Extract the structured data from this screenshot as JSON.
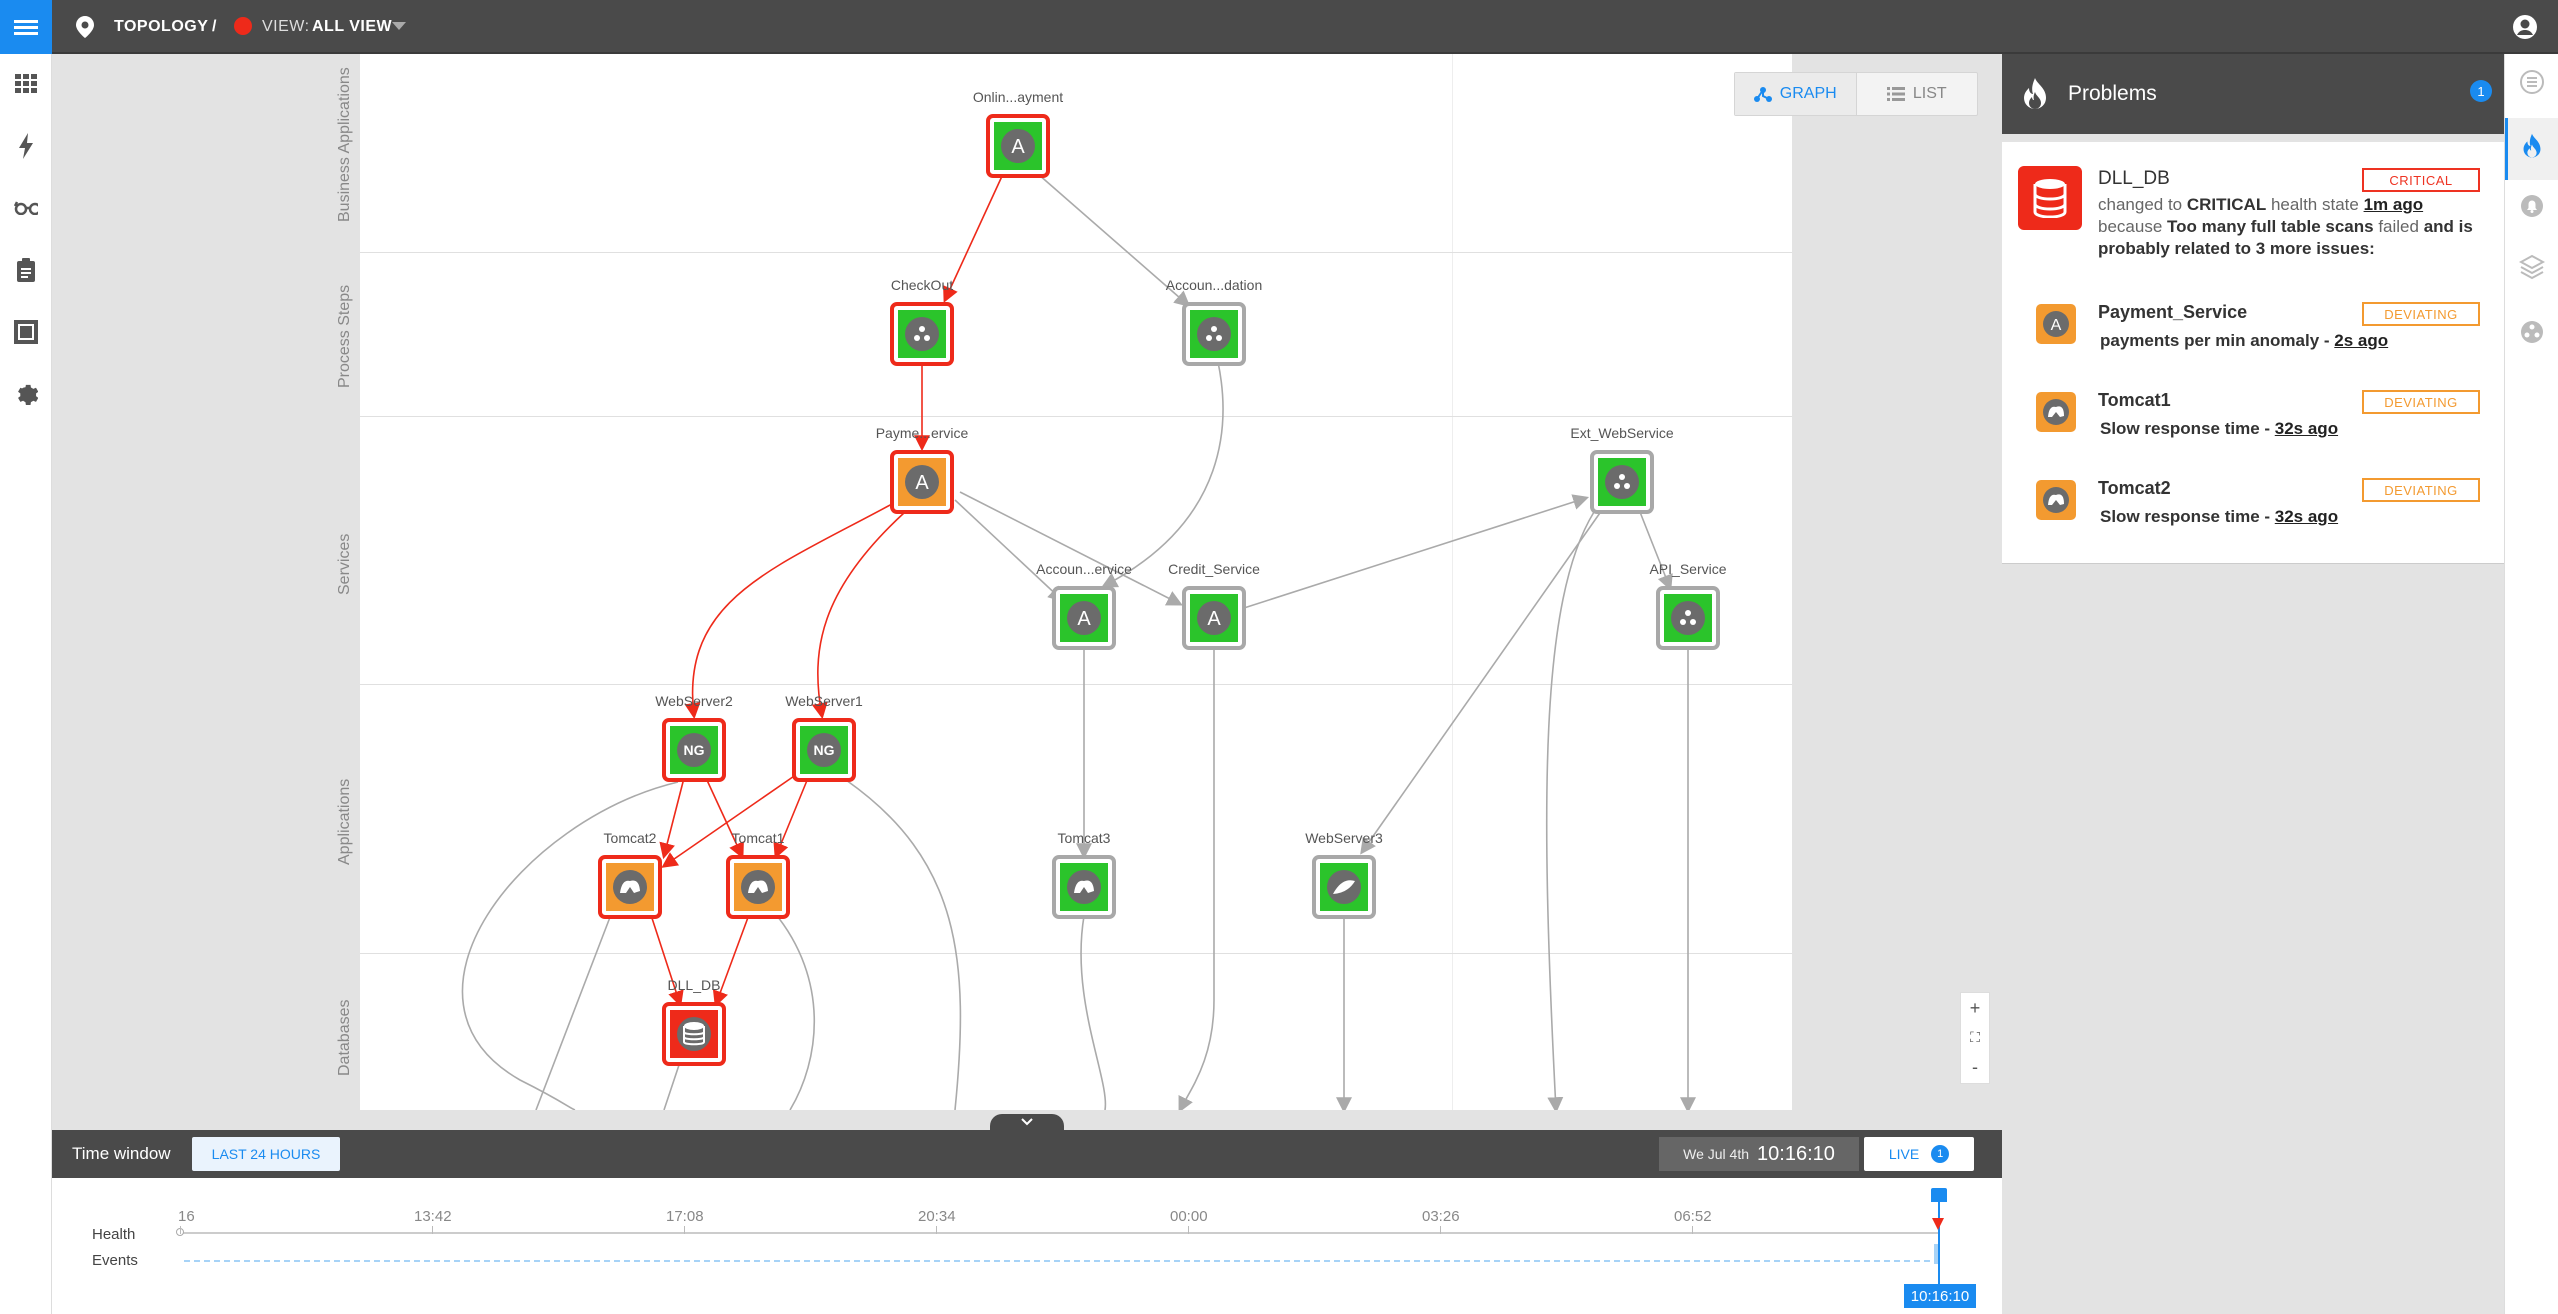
{
  "header": {
    "section": "TOPOLOGY",
    "separator": "/",
    "view_prefix": "VIEW:",
    "view_name": "ALL VIEW"
  },
  "lanes": [
    "Business Applications",
    "Process Steps",
    "Services",
    "Applications",
    "Databases"
  ],
  "view_toggle": {
    "graph": "GRAPH",
    "list": "LIST"
  },
  "zoom": {
    "in": "+",
    "fit": "⛶",
    "out": "-"
  },
  "nodes": [
    {
      "id": "onlinepayment",
      "label": "Onlin...ayment",
      "icon": "A",
      "fill": "#2bc42b",
      "border": "#ee2a1a"
    },
    {
      "id": "checkout",
      "label": "CheckOut",
      "icon": "dots",
      "fill": "#2bc42b",
      "border": "#ee2a1a"
    },
    {
      "id": "accountvalidation",
      "label": "Accoun...dation",
      "icon": "dots",
      "fill": "#2bc42b",
      "border": "#a8a8a8"
    },
    {
      "id": "paymentservice",
      "label": "Payme...ervice",
      "icon": "A",
      "fill": "#f39a30",
      "border": "#ee2a1a"
    },
    {
      "id": "extwebservice",
      "label": "Ext_WebService",
      "icon": "dots",
      "fill": "#2bc42b",
      "border": "#a8a8a8"
    },
    {
      "id": "accountservice",
      "label": "Accoun...ervice",
      "icon": "A",
      "fill": "#2bc42b",
      "border": "#a8a8a8"
    },
    {
      "id": "creditservice",
      "label": "Credit_Service",
      "icon": "A",
      "fill": "#2bc42b",
      "border": "#a8a8a8"
    },
    {
      "id": "apiservice",
      "label": "API_Service",
      "icon": "dots",
      "fill": "#2bc42b",
      "border": "#a8a8a8"
    },
    {
      "id": "webserver2",
      "label": "WebServer2",
      "icon": "NG",
      "fill": "#2bc42b",
      "border": "#ee2a1a"
    },
    {
      "id": "webserver1",
      "label": "WebServer1",
      "icon": "NG",
      "fill": "#2bc42b",
      "border": "#ee2a1a"
    },
    {
      "id": "tomcat2",
      "label": "Tomcat2",
      "icon": "cat",
      "fill": "#f39a30",
      "border": "#ee2a1a"
    },
    {
      "id": "tomcat1",
      "label": "Tomcat1",
      "icon": "cat",
      "fill": "#f39a30",
      "border": "#ee2a1a"
    },
    {
      "id": "tomcat3",
      "label": "Tomcat3",
      "icon": "cat",
      "fill": "#2bc42b",
      "border": "#a8a8a8"
    },
    {
      "id": "webserver3",
      "label": "WebServer3",
      "icon": "feather",
      "fill": "#2bc42b",
      "border": "#a8a8a8"
    },
    {
      "id": "dlldb",
      "label": "DLL_DB",
      "icon": "db",
      "fill": "#ee2a1a",
      "border": "#ee2a1a"
    }
  ],
  "problems": {
    "title": "Problems",
    "count": "1",
    "main": {
      "name": "DLL_DB",
      "badge": "CRITICAL",
      "text_1": "changed to",
      "text_2": "CRITICAL",
      "text_3": "health state",
      "time": "1m ago",
      "text_4": "because",
      "text_5": "Too many full table scans",
      "text_6": "failed",
      "text_7": "and is probably related to 3 more issues:"
    },
    "related": [
      {
        "name": "Payment_Service",
        "badge": "DEVIATING",
        "desc": "payments per min anomaly - ",
        "time": "2s ago",
        "icon": "A"
      },
      {
        "name": "Tomcat1",
        "badge": "DEVIATING",
        "desc": "Slow response time - ",
        "time": "32s ago",
        "icon": "cat"
      },
      {
        "name": "Tomcat2",
        "badge": "DEVIATING",
        "desc": "Slow response time - ",
        "time": "32s ago",
        "icon": "cat"
      }
    ]
  },
  "timebar": {
    "label": "Time window",
    "range_button": "LAST 24 HOURS",
    "date": "We Jul 4th",
    "time": "10:16:10",
    "live": "LIVE",
    "live_count": "1"
  },
  "timeline": {
    "rows": [
      "Health",
      "Events"
    ],
    "ticks": [
      "16",
      "13:42",
      "17:08",
      "20:34",
      "00:00",
      "03:26",
      "06:52"
    ],
    "cursor": "10:16:10"
  },
  "colors": {
    "accent": "#1a8bf0",
    "critical": "#ee2a1a",
    "deviating": "#f39a30",
    "healthy": "#2bc42b"
  }
}
